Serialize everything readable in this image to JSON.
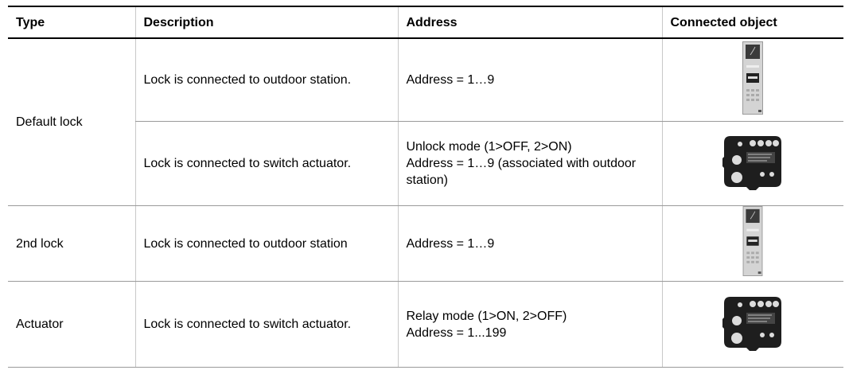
{
  "table": {
    "headers": [
      "Type",
      "Description",
      "Address",
      "Connected object"
    ],
    "rows": [
      {
        "type": "Default lock",
        "entries": [
          {
            "description": "Lock is connected to outdoor station.",
            "address": [
              "Address = 1…9"
            ]
          },
          {
            "description": "Lock is connected to switch actuator.",
            "address": [
              "Unlock mode (1>OFF, 2>ON)",
              "Address = 1…9 (associated with outdoor station)"
            ]
          }
        ]
      },
      {
        "type": "2nd lock",
        "entries": [
          {
            "description": "Lock is connected to outdoor station",
            "address": [
              "Address = 1…9"
            ]
          }
        ]
      },
      {
        "type": "Actuator",
        "entries": [
          {
            "description": "Lock is connected to switch actuator.",
            "address": [
              "Relay mode (1>ON, 2>OFF)",
              "Address = 1...199"
            ]
          }
        ]
      }
    ]
  }
}
